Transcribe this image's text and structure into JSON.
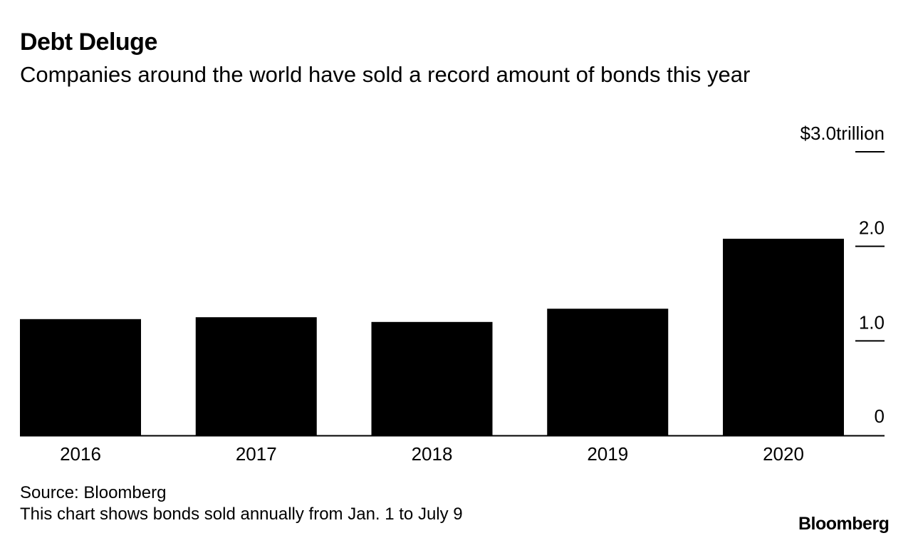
{
  "title": "Debt Deluge",
  "subtitle": "Companies around the world have sold a record amount of bonds this year",
  "source": "Source: Bloomberg",
  "note": "This chart shows bonds sold annually from Jan. 1 to July 9",
  "logo": "Bloomberg",
  "colors": {
    "bar": "#000000",
    "text": "#000000",
    "background": "#ffffff"
  },
  "chart_data": {
    "type": "bar",
    "title": "Debt Deluge",
    "subtitle": "Companies around the world have sold a record amount of bonds this year",
    "categories": [
      "2016",
      "2017",
      "2018",
      "2019",
      "2020"
    ],
    "values": [
      1.23,
      1.25,
      1.2,
      1.34,
      2.08
    ],
    "y_unit_label": "$3.0trillion",
    "yticks": [
      0,
      1.0,
      2.0,
      3.0
    ],
    "ytick_labels": [
      "0",
      "1.0",
      "2.0",
      "$3.0trillion"
    ],
    "ylim": [
      0,
      3.0
    ],
    "axis_position": "right",
    "grid": false,
    "legend": "none"
  }
}
